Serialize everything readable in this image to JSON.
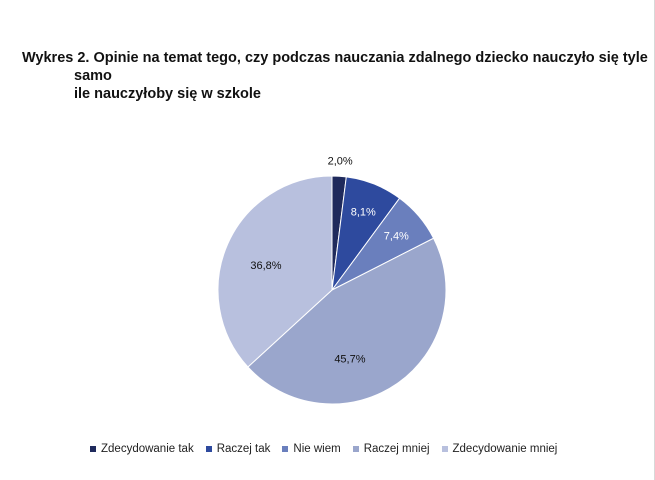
{
  "title": {
    "line1": "Wykres 2. Opinie na temat tego, czy podczas nauczania zdalnego dziecko nauczyło się tyle",
    "line2": "samo",
    "line3": "ile nauczyłoby się w szkole"
  },
  "chart_data": {
    "type": "pie",
    "title": "Wykres 2. Opinie na temat tego, czy podczas nauczania zdalnego dziecko nauczyło się tyle samo ile nauczyłoby się w szkole",
    "categories": [
      "Zdecydowanie tak",
      "Raczej tak",
      "Nie wiem",
      "Raczej mniej",
      "Zdecydowanie mniej"
    ],
    "values": [
      2.0,
      8.1,
      7.4,
      45.7,
      36.8
    ],
    "labels": [
      "2,0%",
      "8,1%",
      "7,4%",
      "45,7%",
      "36,8%"
    ],
    "colors": [
      "#1f2a5c",
      "#2e4a9e",
      "#6a7fbd",
      "#9aa6cc",
      "#b8c0de"
    ],
    "label_colors": [
      "#111111",
      "#ffffff",
      "#ffffff",
      "#111111",
      "#111111"
    ],
    "legend_position": "bottom"
  }
}
